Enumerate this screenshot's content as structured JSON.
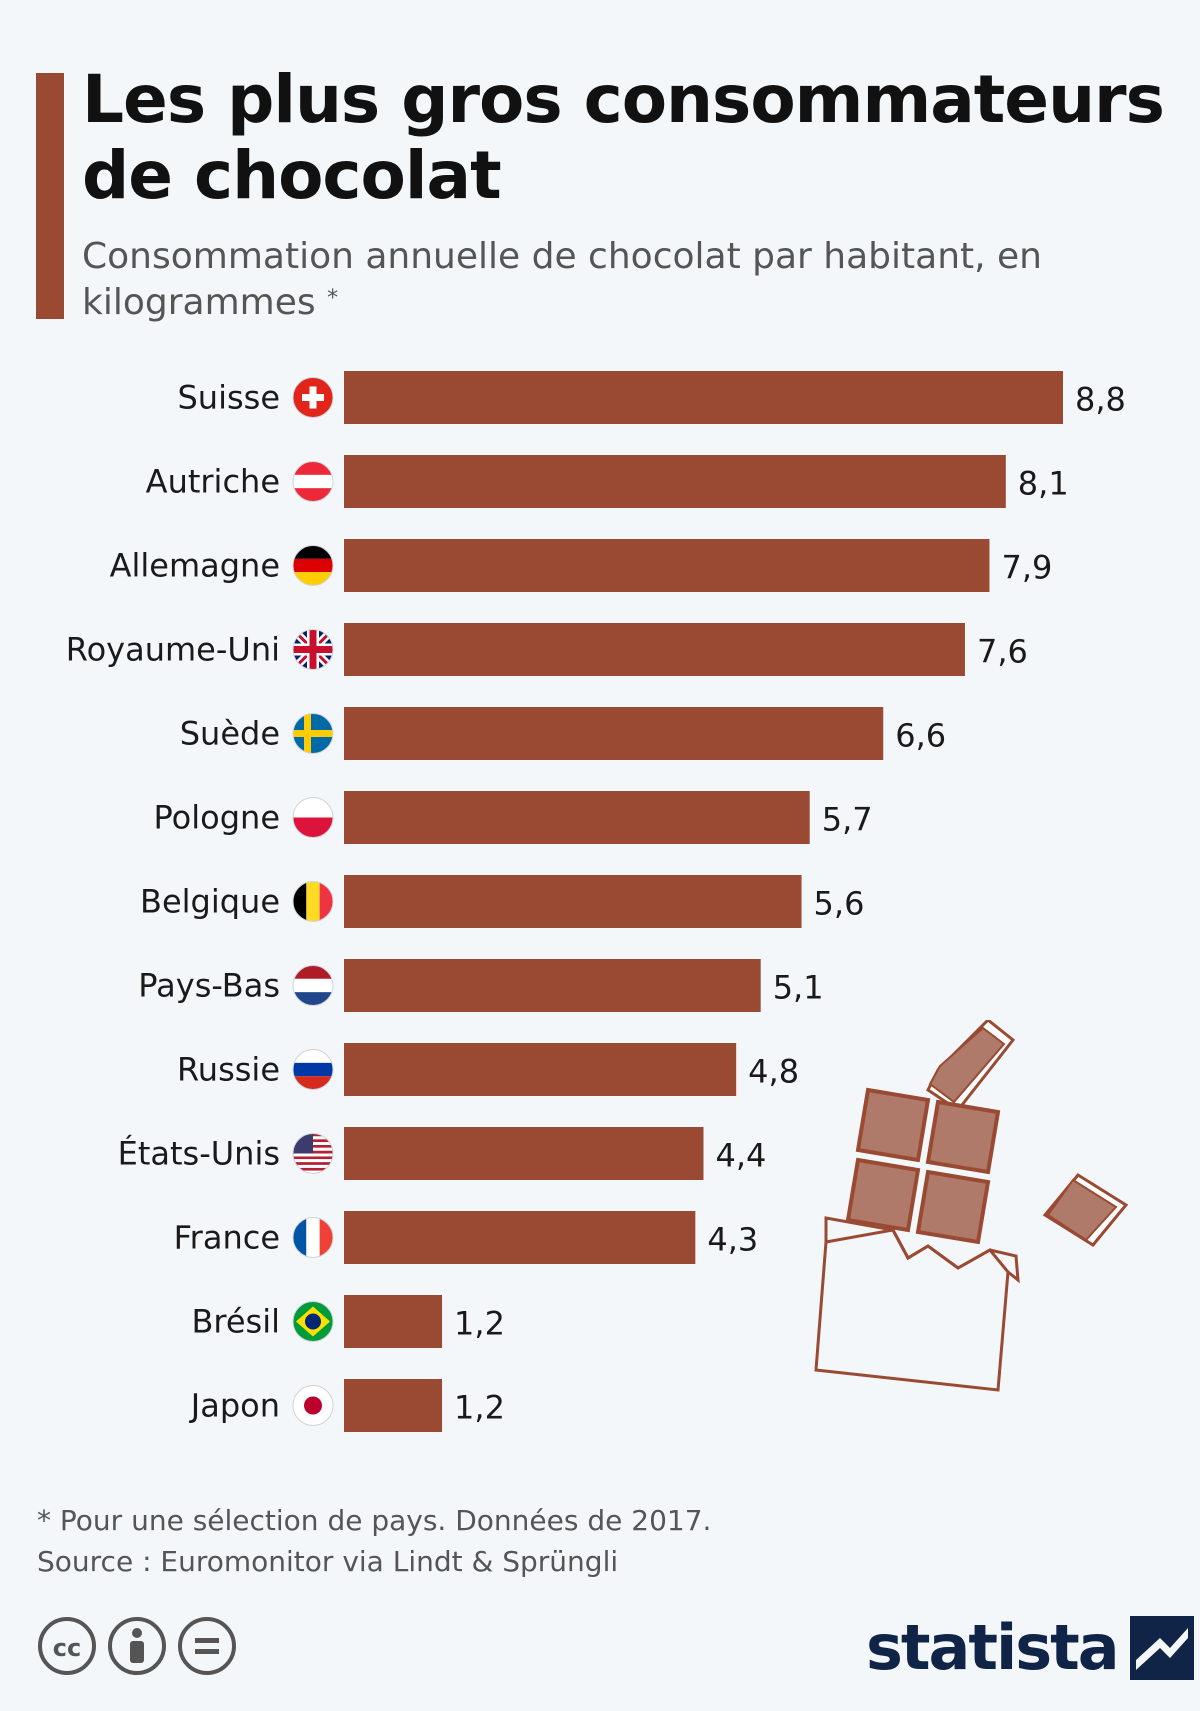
{
  "header": {
    "title": "Les plus gros consommateurs de chocolat",
    "subtitle": "Consommation annuelle de chocolat par habitant, en kilogrammes",
    "subtitle_marker": "*"
  },
  "chart_data": {
    "type": "bar",
    "orientation": "horizontal",
    "title": "Les plus gros consommateurs de chocolat",
    "subtitle": "Consommation annuelle de chocolat par habitant, en kilogrammes",
    "categories": [
      "Suisse",
      "Autriche",
      "Allemagne",
      "Royaume-Uni",
      "Suède",
      "Pologne",
      "Belgique",
      "Pays-Bas",
      "Russie",
      "États-Unis",
      "France",
      "Brésil",
      "Japon"
    ],
    "values": [
      8.8,
      8.1,
      7.9,
      7.6,
      6.6,
      5.7,
      5.6,
      5.1,
      4.8,
      4.4,
      4.3,
      1.2,
      1.2
    ],
    "value_labels": [
      "8,8",
      "8,1",
      "7,9",
      "7,6",
      "6,6",
      "5,7",
      "5,6",
      "5,1",
      "4,8",
      "4,4",
      "4,3",
      "1,2",
      "1,2"
    ],
    "flags": [
      "flag-switzerland-icon",
      "flag-austria-icon",
      "flag-germany-icon",
      "flag-uk-icon",
      "flag-sweden-icon",
      "flag-poland-icon",
      "flag-belgium-icon",
      "flag-netherlands-icon",
      "flag-russia-icon",
      "flag-usa-icon",
      "flag-france-icon",
      "flag-brazil-icon",
      "flag-japan-icon"
    ],
    "bar_color": "#9a4a33",
    "xlim": [
      0,
      8.8
    ],
    "grid": false,
    "legend": "none"
  },
  "footer": {
    "note": "* Pour une sélection de pays. Données de 2017.",
    "source": "Source : Euromonitor via Lindt & Sprüngli",
    "brand": "statista",
    "license_icons": [
      "cc-icon",
      "attribution-icon",
      "no-derivatives-icon"
    ]
  },
  "colors": {
    "accent": "#9a4a33",
    "background": "#f4f7fa",
    "brand": "#0f2446"
  }
}
